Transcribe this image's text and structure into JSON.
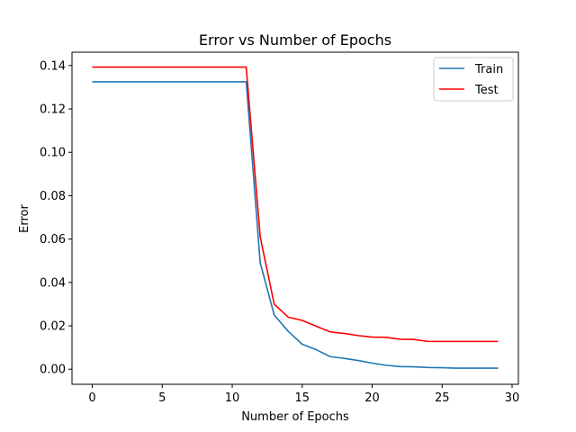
{
  "chart_data": {
    "type": "line",
    "title": "Error vs Number of Epochs",
    "xlabel": "Number of Epochs",
    "ylabel": "Error",
    "xlim": [
      -1.45,
      30.45
    ],
    "ylim": [
      -0.00696,
      0.14616
    ],
    "xticks": [
      0,
      5,
      10,
      15,
      20,
      25,
      30
    ],
    "xtick_labels": [
      "0",
      "5",
      "10",
      "15",
      "20",
      "25",
      "30"
    ],
    "yticks": [
      0.0,
      0.02,
      0.04,
      0.06,
      0.08,
      0.1,
      0.12,
      0.14
    ],
    "ytick_labels": [
      "0.00",
      "0.02",
      "0.04",
      "0.06",
      "0.08",
      "0.10",
      "0.12",
      "0.14"
    ],
    "grid": false,
    "legend_position": "top-right",
    "x": [
      0,
      1,
      2,
      3,
      4,
      5,
      6,
      7,
      8,
      9,
      10,
      11,
      12,
      13,
      14,
      15,
      16,
      17,
      18,
      19,
      20,
      21,
      22,
      23,
      24,
      25,
      26,
      27,
      28,
      29
    ],
    "series": [
      {
        "name": "Train",
        "color": "#1f77b4",
        "values": [
          0.1325,
          0.1325,
          0.1325,
          0.1325,
          0.1325,
          0.1325,
          0.1325,
          0.1325,
          0.1325,
          0.1325,
          0.1325,
          0.1325,
          0.049,
          0.025,
          0.0175,
          0.0115,
          0.009,
          0.0058,
          0.005,
          0.004,
          0.0028,
          0.0018,
          0.0012,
          0.0011,
          0.0008,
          0.0007,
          0.0005,
          0.0005,
          0.0005,
          0.0005
        ]
      },
      {
        "name": "Test",
        "color": "#ff0000",
        "values": [
          0.1393,
          0.1393,
          0.1393,
          0.1393,
          0.1393,
          0.1393,
          0.1393,
          0.1393,
          0.1393,
          0.1393,
          0.1393,
          0.1393,
          0.061,
          0.03,
          0.024,
          0.0225,
          0.0198,
          0.0172,
          0.0165,
          0.0155,
          0.0148,
          0.0147,
          0.0138,
          0.0137,
          0.0128,
          0.0128,
          0.0128,
          0.0128,
          0.0128,
          0.0128
        ]
      }
    ]
  }
}
